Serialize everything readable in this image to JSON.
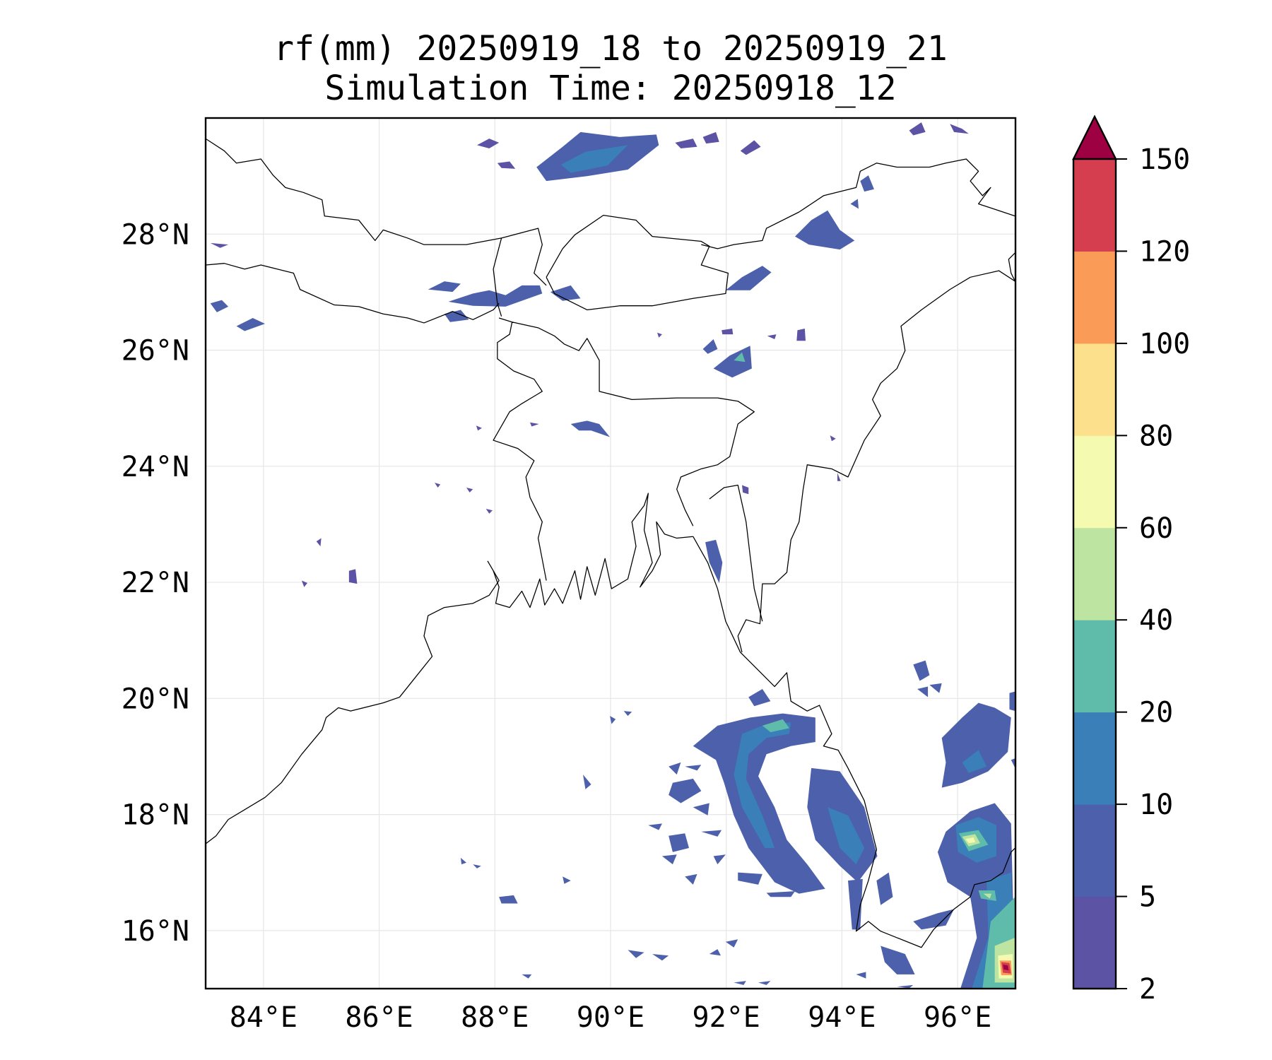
{
  "chart_data": {
    "type": "heatmap",
    "title": "rf(mm) 20250919_18 to 20250919_21",
    "subtitle": "Simulation Time: 20250918_12",
    "variable": "rf(mm)",
    "lon_range": [
      83,
      97
    ],
    "lat_range": [
      15,
      30
    ],
    "x_ticks": [
      84,
      86,
      88,
      90,
      92,
      94,
      96
    ],
    "x_tick_labels": [
      "84°E",
      "86°E",
      "88°E",
      "90°E",
      "92°E",
      "94°E",
      "96°E"
    ],
    "y_ticks": [
      16,
      18,
      20,
      22,
      24,
      26,
      28
    ],
    "y_tick_labels": [
      "16°N",
      "18°N",
      "20°N",
      "22°N",
      "24°N",
      "26°N",
      "28°N"
    ],
    "grid": true,
    "colorbar": {
      "levels": [
        2,
        5,
        10,
        20,
        40,
        60,
        80,
        100,
        120,
        150
      ],
      "level_labels": [
        "2",
        "5",
        "10",
        "20",
        "40",
        "60",
        "80",
        "100",
        "120",
        "150"
      ],
      "colors": [
        "#5c53a5",
        "#4c60ab",
        "#3a7fb8",
        "#5fbbaa",
        "#bde4a1",
        "#f4fbb0",
        "#fde08b",
        "#fa9c58",
        "#d53e4f"
      ],
      "extend_max_color": "#9e0142",
      "extend": "max",
      "placement": "right"
    }
  }
}
